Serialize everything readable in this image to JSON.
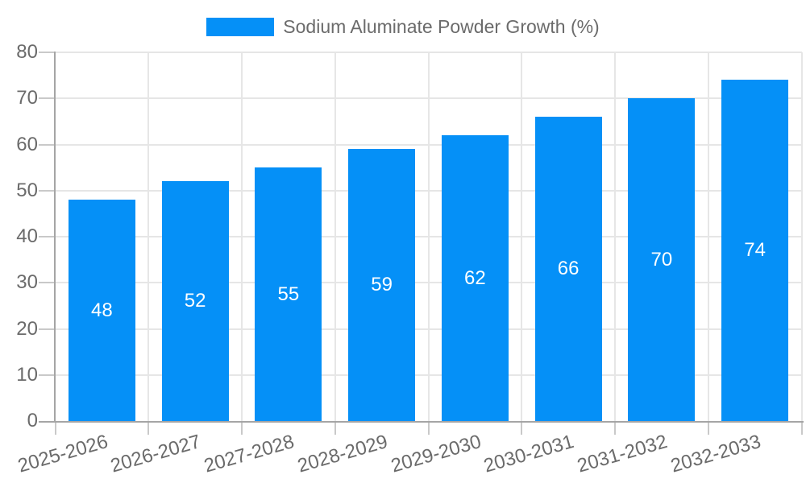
{
  "legend": {
    "label": "Sodium Aluminate Powder Growth (%)"
  },
  "chart_data": {
    "type": "bar",
    "title": "Sodium Aluminate Powder Growth (%)",
    "categories": [
      "2025-2026",
      "2026-2027",
      "2027-2028",
      "2028-2029",
      "2029-2030",
      "2030-2031",
      "2031-2032",
      "2032-2033"
    ],
    "values": [
      48,
      52,
      55,
      59,
      62,
      66,
      70,
      74
    ],
    "xlabel": "",
    "ylabel": "",
    "ylim": [
      0,
      80
    ],
    "yticks": [
      0,
      10,
      20,
      30,
      40,
      50,
      60,
      70,
      80
    ],
    "grid": true,
    "legend_position": "top-center",
    "bar_labels_inside": true,
    "colors": {
      "bar": "#0590f7",
      "value_text": "#ffffff",
      "axis_text": "#6b6b6b",
      "grid_line": "#e6e6e6",
      "tick_line": "#c9c9c9",
      "axis_line": "#a5a5a5",
      "background": "#ffffff"
    }
  }
}
